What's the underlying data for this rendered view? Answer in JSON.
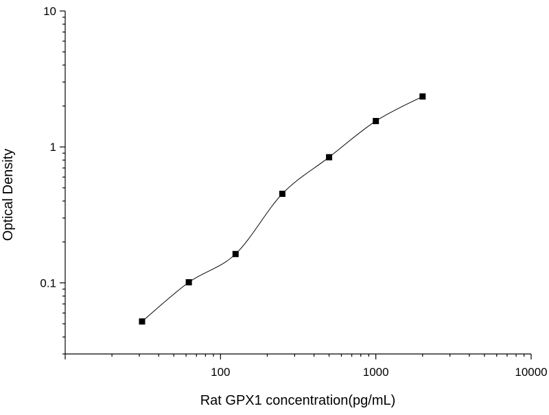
{
  "chart_data": {
    "type": "scatter",
    "xlabel": "Rat GPX1 concentration(pg/mL)",
    "ylabel": "Optical Density",
    "x_scale": "log",
    "y_scale": "log",
    "xlim": [
      10,
      10000
    ],
    "ylim": [
      0.03,
      10
    ],
    "x_ticks": [
      {
        "value": 100,
        "label": "100"
      },
      {
        "value": 1000,
        "label": "1000"
      },
      {
        "value": 10000,
        "label": "10000"
      }
    ],
    "y_ticks": [
      {
        "value": 0.1,
        "label": "0.1"
      },
      {
        "value": 1,
        "label": "1"
      },
      {
        "value": 10,
        "label": "10"
      }
    ],
    "grid": false,
    "legend": "none",
    "marker_color": "#000000",
    "series": [
      {
        "x": [
          31.25,
          62.5,
          125,
          250,
          500,
          1000,
          2000
        ],
        "y": [
          0.052,
          0.101,
          0.163,
          0.452,
          0.84,
          1.55,
          2.35
        ],
        "fit_curve": true
      }
    ]
  }
}
